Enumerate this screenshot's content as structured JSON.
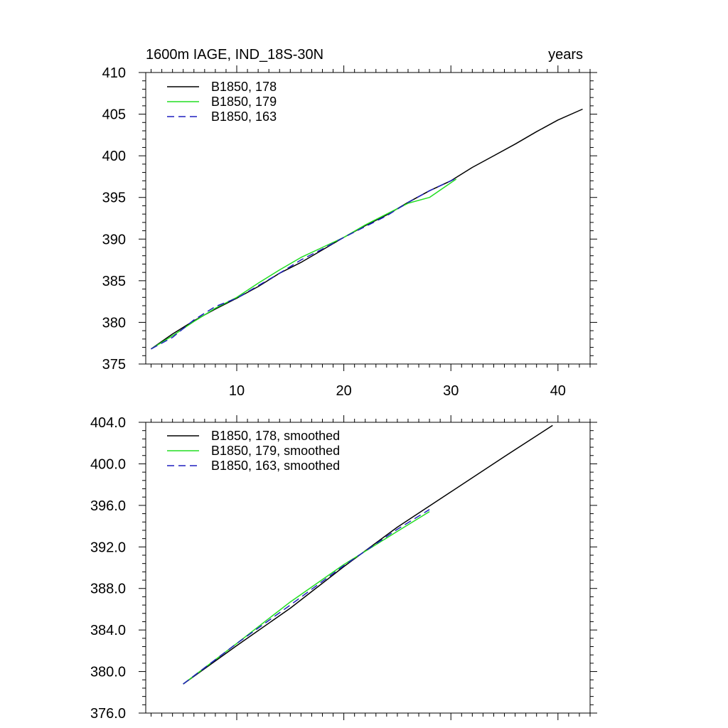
{
  "chart_data": [
    {
      "type": "line",
      "title_left": "1600m IAGE, IND_18S-30N",
      "title_right": "years",
      "xlabel": "",
      "ylabel": "",
      "xlim": [
        1.5,
        43
      ],
      "ylim": [
        375,
        410
      ],
      "xticks": [
        10,
        20,
        30,
        40
      ],
      "xtick_labels": [
        "10",
        "20",
        "30",
        "40"
      ],
      "yticks": [
        375,
        380,
        385,
        390,
        395,
        400,
        405,
        410
      ],
      "ytick_labels": [
        "375",
        "380",
        "385",
        "390",
        "395",
        "400",
        "405",
        "410"
      ],
      "legend_position": "top-left",
      "series": [
        {
          "name": "B1850, 178",
          "color": "#000000",
          "dash": "solid",
          "x": [
            2,
            4,
            6,
            8,
            10,
            12,
            14,
            16,
            18,
            20,
            22,
            24,
            26,
            28,
            30,
            32,
            34,
            36,
            38,
            40,
            42.3
          ],
          "y": [
            376.8,
            378.6,
            380.2,
            381.6,
            382.9,
            384.3,
            385.9,
            387.2,
            388.7,
            390.2,
            391.6,
            392.9,
            394.4,
            395.8,
            397.0,
            398.6,
            400.0,
            401.4,
            402.9,
            404.3,
            405.6
          ]
        },
        {
          "name": "B1850, 179",
          "color": "#22dd22",
          "dash": "solid",
          "x": [
            2,
            4,
            6,
            8,
            10,
            12,
            14,
            16,
            18,
            20,
            22,
            24,
            26,
            28,
            30.5
          ],
          "y": [
            376.8,
            378.4,
            380.1,
            381.7,
            383.0,
            384.7,
            386.3,
            387.8,
            389.0,
            390.2,
            391.7,
            393.0,
            394.3,
            395.0,
            397.2
          ]
        },
        {
          "name": "B1850, 163",
          "color": "#1f1fbf",
          "dash": "dashed",
          "x": [
            2,
            4,
            6,
            8,
            10,
            12,
            14,
            16,
            18,
            20,
            22,
            24,
            26,
            28,
            30.5
          ],
          "y": [
            376.8,
            378.2,
            380.3,
            381.9,
            382.9,
            384.4,
            385.9,
            387.5,
            388.8,
            390.2,
            391.5,
            392.8,
            394.4,
            395.8,
            397.3
          ]
        }
      ]
    },
    {
      "type": "line",
      "title_left": "",
      "title_right": "",
      "xlabel": "",
      "ylabel": "",
      "xlim": [
        1.5,
        43
      ],
      "ylim": [
        376,
        404
      ],
      "xticks": [
        10,
        20,
        30,
        40
      ],
      "xtick_labels": [],
      "yticks": [
        376,
        380,
        384,
        388,
        392,
        396,
        400,
        404
      ],
      "ytick_labels": [
        "376.0",
        "380.0",
        "384.0",
        "388.0",
        "392.0",
        "396.0",
        "400.0",
        "404.0"
      ],
      "legend_position": "top-left",
      "series": [
        {
          "name": "B1850, 178, smoothed",
          "color": "#000000",
          "dash": "solid",
          "x": [
            5,
            10,
            15,
            20,
            25,
            30,
            35,
            39.5
          ],
          "y": [
            378.8,
            382.5,
            386.1,
            390.1,
            393.9,
            397.3,
            400.7,
            403.7
          ]
        },
        {
          "name": "B1850, 179, smoothed",
          "color": "#22dd22",
          "dash": "solid",
          "x": [
            5,
            10,
            15,
            20,
            25,
            28
          ],
          "y": [
            378.8,
            382.7,
            386.7,
            390.3,
            393.5,
            395.4
          ]
        },
        {
          "name": "B1850, 163, smoothed",
          "color": "#1f1fbf",
          "dash": "dashed",
          "x": [
            5,
            10,
            15,
            20,
            25,
            28
          ],
          "y": [
            378.8,
            382.7,
            386.4,
            390.2,
            393.7,
            395.6
          ]
        }
      ]
    }
  ]
}
